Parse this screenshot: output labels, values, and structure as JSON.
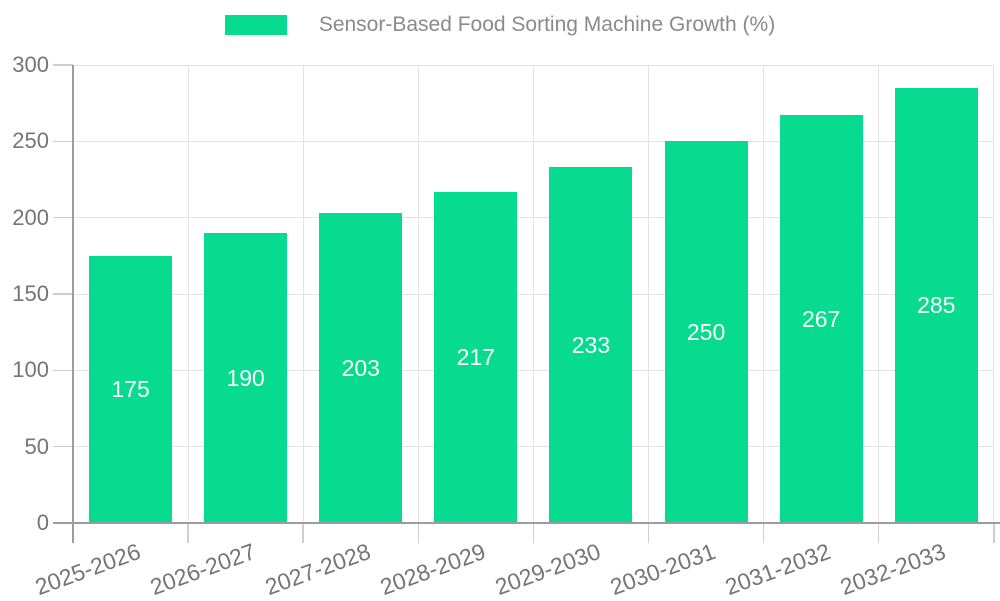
{
  "chart_data": {
    "type": "bar",
    "title": "Sensor-Based Food Sorting Machine Growth (%)",
    "categories": [
      "2025-2026",
      "2026-2027",
      "2027-2028",
      "2028-2029",
      "2029-2030",
      "2030-2031",
      "2031-2032",
      "2032-2033"
    ],
    "values": [
      175,
      190,
      203,
      217,
      233,
      250,
      267,
      285
    ],
    "xlabel": "",
    "ylabel": "",
    "ylim": [
      0,
      300
    ],
    "yticks": [
      0,
      50,
      100,
      150,
      200,
      250,
      300
    ],
    "grid": true,
    "legend_position": "top-center",
    "bar_color": "#06db90",
    "value_label_color": "#ffffff",
    "axis_color": "#9c9c9c",
    "tick_color": "#cfcfcf",
    "grid_color": "#e3e3e3",
    "tick_label_color": "#757575",
    "legend_text_color": "#8a8a8a",
    "background_color": "#ffffff"
  }
}
